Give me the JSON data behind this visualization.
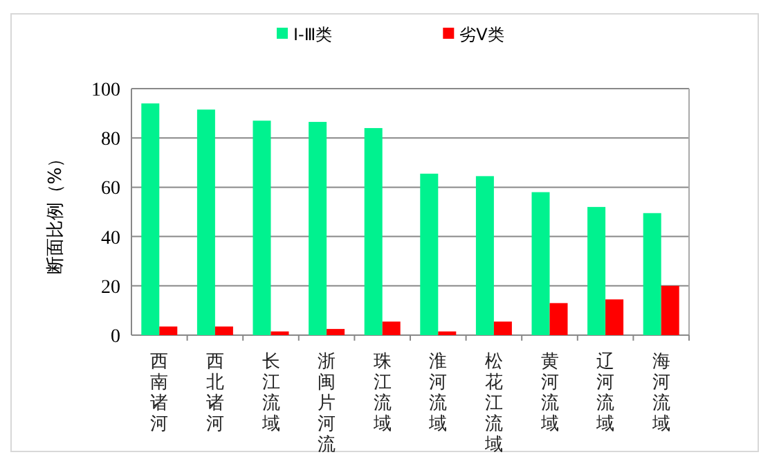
{
  "chart_data": {
    "type": "bar",
    "ylabel": "断面比例（%）",
    "categories": [
      "西南诸河",
      "西北诸河",
      "长江流域",
      "浙闽片河流",
      "珠江流域",
      "淮河流域",
      "松花江流域",
      "黄河流域",
      "辽河流域",
      "海河流域"
    ],
    "series": [
      {
        "name": "Ⅰ-Ⅲ类",
        "color": "#00f28f",
        "values": [
          94,
          91.5,
          87,
          86.5,
          84,
          65.5,
          64.5,
          58,
          52,
          49.5
        ]
      },
      {
        "name": "劣Ⅴ类",
        "color": "#ff0000",
        "values": [
          3.5,
          3.5,
          1.5,
          2.5,
          5.5,
          1.5,
          5.5,
          13,
          14.5,
          20
        ]
      }
    ],
    "ylim": [
      0,
      100
    ],
    "yticks": [
      0,
      20,
      40,
      60,
      80,
      100
    ],
    "grid": "y",
    "legend": "top"
  }
}
